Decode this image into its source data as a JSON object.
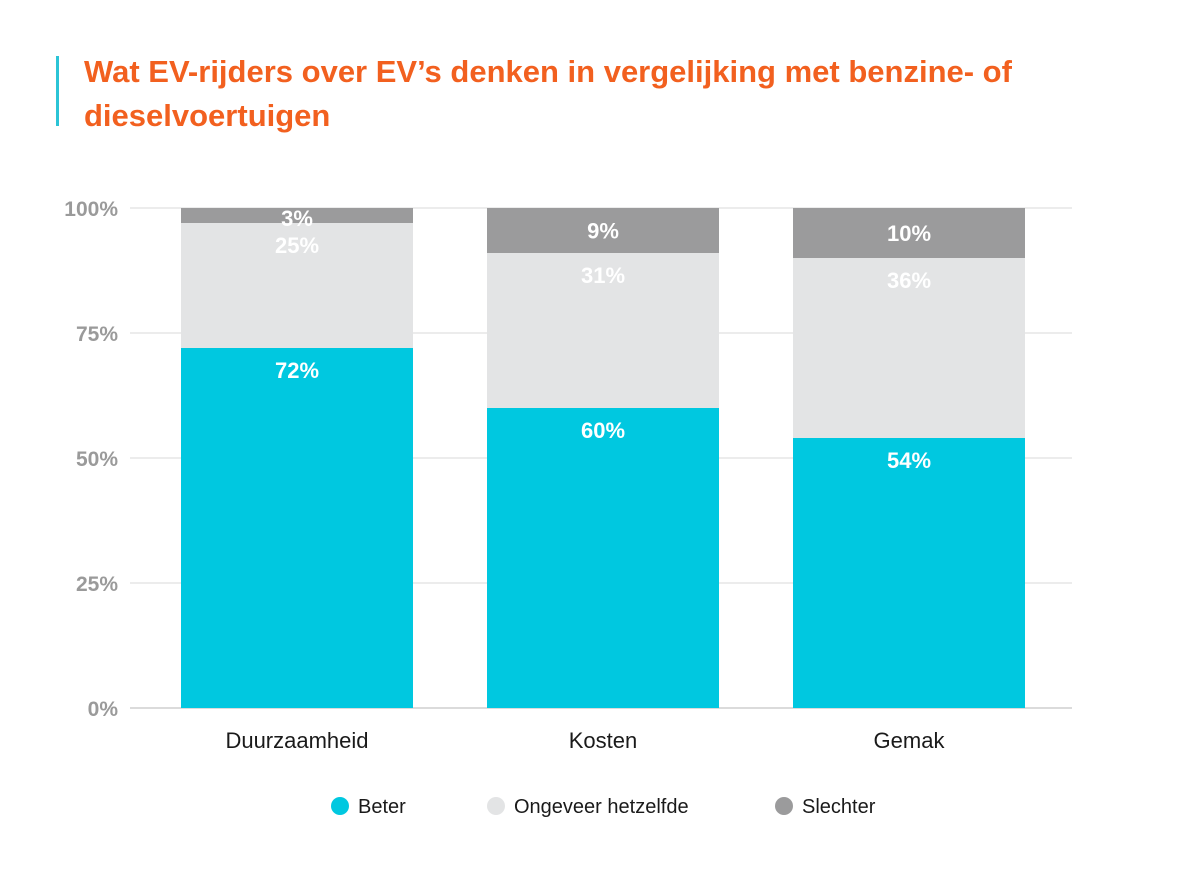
{
  "title": "Wat EV-rijders over EV’s denken in vergelijking met benzine- of dieselvoertuigen",
  "colors": {
    "title": "#f2601f",
    "accent": "#2bc4d6"
  },
  "chart_data": {
    "type": "bar",
    "stacked": true,
    "categories": [
      "Duurzaamheid",
      "Kosten",
      "Gemak"
    ],
    "series": [
      {
        "name": "Beter",
        "values": [
          72,
          60,
          54
        ],
        "labels": [
          "72%",
          "60%",
          "54%"
        ],
        "color": "#00c8e0"
      },
      {
        "name": "Ongeveer hetzelfde",
        "values": [
          25,
          31,
          36
        ],
        "labels": [
          "25%",
          "31%",
          "36%"
        ],
        "color": "#e3e4e5"
      },
      {
        "name": "Slechter",
        "values": [
          3,
          9,
          10
        ],
        "labels": [
          "3%",
          "9%",
          "10%"
        ],
        "color": "#9b9b9c"
      }
    ],
    "ylim": [
      0,
      100
    ],
    "yticks": [
      0,
      25,
      50,
      75,
      100
    ],
    "ytick_labels": [
      "0%",
      "25%",
      "50%",
      "75%",
      "100%"
    ],
    "grid": true,
    "legend": "bottom"
  }
}
